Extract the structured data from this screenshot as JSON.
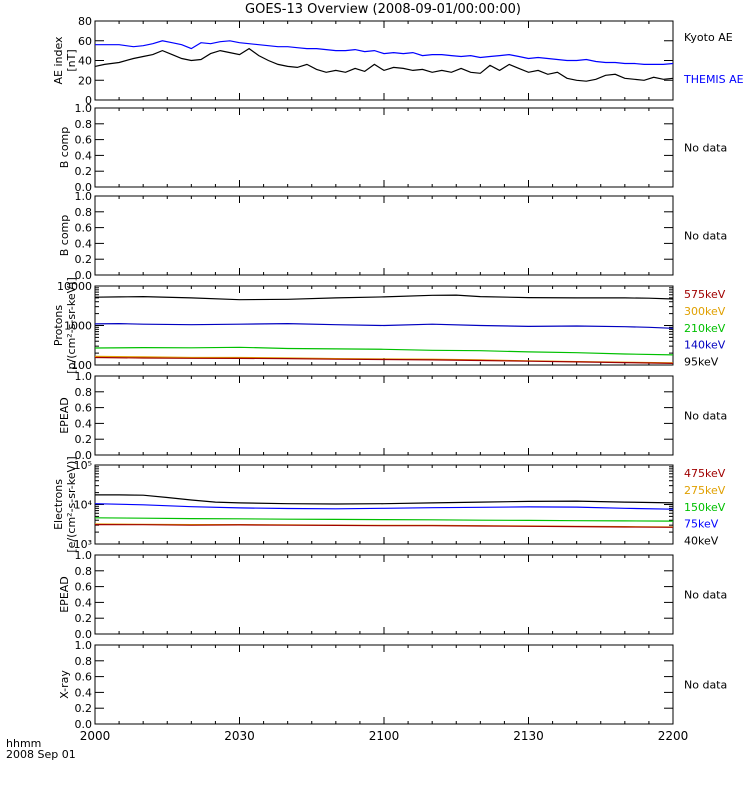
{
  "title": "GOES-13 Overview (2008-09-01/00:00:00)",
  "x_axis": {
    "title_line1": "hhmm",
    "title_line2": "2008 Sep 01",
    "ticks": [
      "2000",
      "2030",
      "2100",
      "2130",
      "2200"
    ],
    "range_minutes": [
      0,
      120
    ]
  },
  "chart_data": [
    {
      "type": "line",
      "ylabel": "AE index",
      "yunit": "[nT]",
      "ylim": [
        0,
        80
      ],
      "yticks": [
        "0",
        "20",
        "40",
        "60",
        "80"
      ],
      "legend": [
        {
          "text": "Kyoto AE",
          "color": "#000000"
        },
        {
          "text": "THEMIS AE",
          "color": "#0000ff"
        }
      ],
      "series": [
        {
          "name": "Kyoto AE",
          "color": "#000000",
          "x": [
            0,
            2,
            5,
            8,
            10,
            12,
            14,
            16,
            18,
            20,
            22,
            24,
            26,
            28,
            30,
            32,
            34,
            36,
            38,
            40,
            42,
            44,
            46,
            48,
            50,
            52,
            54,
            56,
            58,
            60,
            62,
            64,
            66,
            68,
            70,
            72,
            74,
            76,
            78,
            80,
            82,
            84,
            86,
            88,
            90,
            92,
            94,
            96,
            98,
            100,
            102,
            104,
            106,
            108,
            110,
            112,
            114,
            116,
            118,
            120
          ],
          "y": [
            34,
            36,
            38,
            42,
            44,
            46,
            50,
            46,
            42,
            40,
            41,
            47,
            50,
            48,
            46,
            52,
            45,
            40,
            36,
            34,
            33,
            36,
            31,
            28,
            30,
            28,
            32,
            29,
            36,
            30,
            33,
            32,
            30,
            31,
            28,
            30,
            28,
            32,
            28,
            27,
            35,
            30,
            36,
            32,
            28,
            30,
            26,
            28,
            22,
            20,
            19,
            21,
            25,
            26,
            22,
            21,
            20,
            23,
            21,
            22
          ]
        },
        {
          "name": "THEMIS AE",
          "color": "#0000ff",
          "x": [
            0,
            2,
            5,
            8,
            10,
            12,
            14,
            16,
            18,
            20,
            22,
            24,
            26,
            28,
            30,
            32,
            34,
            36,
            38,
            40,
            42,
            44,
            46,
            48,
            50,
            52,
            54,
            56,
            58,
            60,
            62,
            64,
            66,
            68,
            70,
            72,
            74,
            76,
            78,
            80,
            82,
            84,
            86,
            88,
            90,
            92,
            94,
            96,
            98,
            100,
            102,
            104,
            106,
            108,
            110,
            112,
            114,
            116,
            118,
            120
          ],
          "y": [
            56,
            56,
            56,
            54,
            55,
            57,
            60,
            58,
            56,
            52,
            58,
            57,
            59,
            60,
            58,
            57,
            56,
            55,
            54,
            54,
            53,
            52,
            52,
            51,
            50,
            50,
            51,
            49,
            50,
            47,
            48,
            47,
            48,
            45,
            46,
            46,
            45,
            44,
            45,
            43,
            44,
            45,
            46,
            44,
            42,
            43,
            42,
            41,
            40,
            40,
            41,
            39,
            38,
            38,
            37,
            37,
            36,
            36,
            36,
            37
          ]
        }
      ]
    },
    {
      "type": "line",
      "ylabel": "B comp",
      "ylim": [
        0,
        1
      ],
      "yticks": [
        "0.0",
        "0.2",
        "0.4",
        "0.6",
        "0.8",
        "1.0"
      ],
      "note": "No data",
      "series": []
    },
    {
      "type": "line",
      "ylabel": "B comp",
      "ylim": [
        0,
        1
      ],
      "yticks": [
        "0.0",
        "0.2",
        "0.4",
        "0.6",
        "0.8",
        "1.0"
      ],
      "note": "No data",
      "series": []
    },
    {
      "type": "line",
      "yscale": "log",
      "ylabel": "Protons",
      "yunit": "[p/(cm²-s-sr-keV)]",
      "ylim": [
        100,
        10000
      ],
      "yticks": [
        "100",
        "1000",
        "10000"
      ],
      "legend": [
        {
          "text": "575keV",
          "color": "#a00000"
        },
        {
          "text": "300keV",
          "color": "#e0a000"
        },
        {
          "text": "210keV",
          "color": "#00c000"
        },
        {
          "text": "140keV",
          "color": "#0000c0"
        },
        {
          "text": "95keV",
          "color": "#000000"
        }
      ],
      "series": [
        {
          "name": "95keV",
          "color": "#000000",
          "x": [
            0,
            5,
            10,
            20,
            30,
            40,
            50,
            60,
            70,
            75,
            80,
            90,
            100,
            110,
            115,
            120
          ],
          "y": [
            5200,
            5300,
            5400,
            5000,
            4500,
            4600,
            5000,
            5300,
            5800,
            5900,
            5400,
            5100,
            5000,
            5000,
            4900,
            4700
          ]
        },
        {
          "name": "140keV",
          "color": "#0000c0",
          "x": [
            0,
            5,
            10,
            20,
            30,
            40,
            50,
            60,
            70,
            80,
            90,
            100,
            110,
            115,
            120
          ],
          "y": [
            1100,
            1120,
            1080,
            1050,
            1080,
            1120,
            1050,
            1000,
            1080,
            1000,
            950,
            970,
            930,
            900,
            850
          ]
        },
        {
          "name": "210keV",
          "color": "#00c000",
          "x": [
            0,
            10,
            20,
            30,
            40,
            50,
            60,
            70,
            80,
            90,
            100,
            110,
            120
          ],
          "y": [
            270,
            275,
            272,
            280,
            262,
            255,
            250,
            235,
            230,
            215,
            205,
            190,
            180
          ]
        },
        {
          "name": "300keV",
          "color": "#e0a000",
          "x": [
            0,
            10,
            20,
            30,
            40,
            50,
            60,
            70,
            80,
            90,
            100,
            110,
            120
          ],
          "y": [
            165,
            160,
            155,
            155,
            150,
            145,
            142,
            140,
            135,
            128,
            122,
            118,
            114
          ]
        },
        {
          "name": "575keV",
          "color": "#a00000",
          "x": [
            0,
            10,
            20,
            30,
            40,
            50,
            60,
            70,
            80,
            90,
            100,
            110,
            120
          ],
          "y": [
            155,
            150,
            148,
            147,
            145,
            140,
            138,
            135,
            130,
            125,
            120,
            115,
            110
          ]
        }
      ]
    },
    {
      "type": "line",
      "ylabel": "EPEAD",
      "ylim": [
        0,
        1
      ],
      "yticks": [
        "0.0",
        "0.2",
        "0.4",
        "0.6",
        "0.8",
        "1.0"
      ],
      "note": "No data",
      "series": []
    },
    {
      "type": "line",
      "yscale": "log",
      "ylabel": "Electrons",
      "yunit": "[e/(cm²-s-sr-keV)]",
      "ylim": [
        1000,
        100000
      ],
      "yticks": [
        "10³",
        "10⁴",
        "10⁵"
      ],
      "legend": [
        {
          "text": "475keV",
          "color": "#a00000"
        },
        {
          "text": "275keV",
          "color": "#e0a000"
        },
        {
          "text": "150keV",
          "color": "#00c000"
        },
        {
          "text": "75keV",
          "color": "#0000ff"
        },
        {
          "text": "40keV",
          "color": "#000000"
        }
      ],
      "series": [
        {
          "name": "40keV",
          "color": "#000000",
          "x": [
            0,
            5,
            10,
            15,
            20,
            25,
            30,
            40,
            50,
            60,
            70,
            80,
            90,
            100,
            110,
            120
          ],
          "y": [
            17500,
            17500,
            17200,
            15000,
            13000,
            11500,
            11000,
            10500,
            10300,
            10500,
            11000,
            11500,
            12000,
            12200,
            11500,
            11000
          ]
        },
        {
          "name": "75keV",
          "color": "#0000ff",
          "x": [
            0,
            10,
            20,
            30,
            40,
            50,
            60,
            70,
            80,
            90,
            100,
            110,
            120
          ],
          "y": [
            10500,
            9800,
            8800,
            8200,
            7900,
            7800,
            8000,
            8300,
            8500,
            8700,
            8600,
            8000,
            7600
          ]
        },
        {
          "name": "150keV",
          "color": "#00c000",
          "x": [
            0,
            10,
            20,
            30,
            40,
            50,
            60,
            70,
            80,
            90,
            100,
            110,
            120
          ],
          "y": [
            4600,
            4500,
            4400,
            4350,
            4250,
            4200,
            4150,
            4100,
            4000,
            3950,
            3900,
            3850,
            3800
          ]
        },
        {
          "name": "275keV",
          "color": "#e0a000",
          "x": [
            0,
            10,
            20,
            30,
            40,
            50,
            60,
            70,
            80,
            90,
            100,
            110,
            120
          ],
          "y": [
            3200,
            3150,
            3100,
            3100,
            3050,
            3000,
            2980,
            2950,
            2900,
            2850,
            2800,
            2750,
            2700
          ]
        },
        {
          "name": "475keV",
          "color": "#a00000",
          "x": [
            0,
            10,
            20,
            30,
            40,
            50,
            60,
            70,
            80,
            90,
            100,
            110,
            120
          ],
          "y": [
            3100,
            3080,
            3000,
            3050,
            3000,
            2950,
            2900,
            2900,
            2850,
            2800,
            2750,
            2700,
            2650
          ]
        }
      ]
    },
    {
      "type": "line",
      "ylabel": "EPEAD",
      "ylim": [
        0,
        1
      ],
      "yticks": [
        "0.0",
        "0.2",
        "0.4",
        "0.6",
        "0.8",
        "1.0"
      ],
      "note": "No data",
      "series": []
    },
    {
      "type": "line",
      "ylabel": "X-ray",
      "ylim": [
        0,
        1
      ],
      "yticks": [
        "0.0",
        "0.2",
        "0.4",
        "0.6",
        "0.8",
        "1.0"
      ],
      "note": "No data",
      "series": []
    }
  ]
}
